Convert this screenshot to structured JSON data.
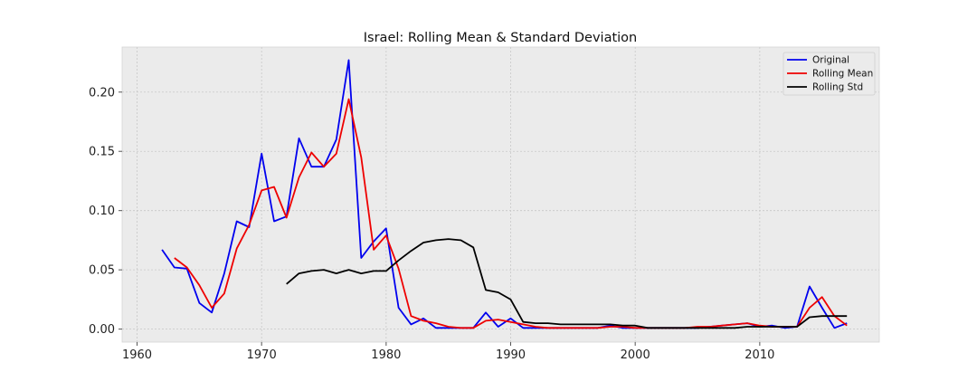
{
  "chart_data": {
    "type": "line",
    "title": "Israel: Rolling Mean & Standard Deviation",
    "xlabel": "",
    "ylabel": "",
    "xlim": [
      1958.8,
      2019.6
    ],
    "ylim": [
      -0.011,
      0.238
    ],
    "x_ticks": [
      1960,
      1970,
      1980,
      1990,
      2000,
      2010
    ],
    "x_tick_labels": [
      "1960",
      "1970",
      "1980",
      "1990",
      "2000",
      "2010"
    ],
    "y_ticks": [
      0.0,
      0.05,
      0.1,
      0.15,
      0.2
    ],
    "y_tick_labels": [
      "0.00",
      "0.05",
      "0.10",
      "0.15",
      "0.20"
    ],
    "grid": true,
    "legend_position": "top-right",
    "series": [
      {
        "name": "Original",
        "color": "#0000ee",
        "x": [
          1962,
          1963,
          1964,
          1965,
          1966,
          1967,
          1968,
          1969,
          1970,
          1971,
          1972,
          1973,
          1974,
          1975,
          1976,
          1977,
          1978,
          1979,
          1980,
          1981,
          1982,
          1983,
          1984,
          1985,
          1986,
          1987,
          1988,
          1989,
          1990,
          1991,
          1992,
          1993,
          1994,
          1995,
          1996,
          1997,
          1998,
          1999,
          2000,
          2001,
          2002,
          2003,
          2004,
          2005,
          2006,
          2007,
          2008,
          2009,
          2010,
          2011,
          2012,
          2013,
          2014,
          2015,
          2016,
          2017
        ],
        "values": [
          0.067,
          0.052,
          0.051,
          0.022,
          0.014,
          0.047,
          0.091,
          0.086,
          0.148,
          0.091,
          0.095,
          0.161,
          0.137,
          0.137,
          0.16,
          0.227,
          0.06,
          0.074,
          0.085,
          0.018,
          0.004,
          0.009,
          0.001,
          0.001,
          0.001,
          0.001,
          0.014,
          0.002,
          0.009,
          0.001,
          0.001,
          0.001,
          0.001,
          0.001,
          0.001,
          0.001,
          0.003,
          0.001,
          0.001,
          0.001,
          0.001,
          0.001,
          0.001,
          0.001,
          0.002,
          0.003,
          0.004,
          0.005,
          0.002,
          0.003,
          0.001,
          0.002,
          0.036,
          0.018,
          0.001,
          0.005
        ]
      },
      {
        "name": "Rolling Mean",
        "color": "#ee0000",
        "x": [
          1963,
          1964,
          1965,
          1966,
          1967,
          1968,
          1969,
          1970,
          1971,
          1972,
          1973,
          1974,
          1975,
          1976,
          1977,
          1978,
          1979,
          1980,
          1981,
          1982,
          1983,
          1984,
          1985,
          1986,
          1987,
          1988,
          1989,
          1990,
          1991,
          1992,
          1993,
          1994,
          1995,
          1996,
          1997,
          1998,
          1999,
          2000,
          2001,
          2002,
          2003,
          2004,
          2005,
          2006,
          2007,
          2008,
          2009,
          2010,
          2011,
          2012,
          2013,
          2014,
          2015,
          2016,
          2017
        ],
        "values": [
          0.06,
          0.052,
          0.037,
          0.018,
          0.03,
          0.068,
          0.088,
          0.117,
          0.12,
          0.094,
          0.128,
          0.149,
          0.137,
          0.148,
          0.194,
          0.145,
          0.067,
          0.079,
          0.051,
          0.011,
          0.007,
          0.005,
          0.002,
          0.001,
          0.001,
          0.007,
          0.008,
          0.006,
          0.004,
          0.002,
          0.001,
          0.001,
          0.001,
          0.001,
          0.001,
          0.002,
          0.002,
          0.001,
          0.001,
          0.001,
          0.001,
          0.001,
          0.002,
          0.002,
          0.003,
          0.004,
          0.005,
          0.003,
          0.002,
          0.002,
          0.002,
          0.018,
          0.027,
          0.011,
          0.003
        ]
      },
      {
        "name": "Rolling Std",
        "color": "#000000",
        "x": [
          1972,
          1973,
          1974,
          1975,
          1976,
          1977,
          1978,
          1979,
          1980,
          1981,
          1982,
          1983,
          1984,
          1985,
          1986,
          1987,
          1988,
          1989,
          1990,
          1991,
          1992,
          1993,
          1994,
          1995,
          1996,
          1997,
          1998,
          1999,
          2000,
          2001,
          2002,
          2003,
          2004,
          2005,
          2006,
          2007,
          2008,
          2009,
          2010,
          2011,
          2012,
          2013,
          2014,
          2015,
          2016,
          2017
        ],
        "values": [
          0.038,
          0.047,
          0.049,
          0.05,
          0.047,
          0.05,
          0.047,
          0.049,
          0.049,
          0.058,
          0.066,
          0.073,
          0.075,
          0.076,
          0.075,
          0.069,
          0.033,
          0.031,
          0.025,
          0.006,
          0.005,
          0.005,
          0.004,
          0.004,
          0.004,
          0.004,
          0.004,
          0.003,
          0.003,
          0.001,
          0.001,
          0.001,
          0.001,
          0.001,
          0.001,
          0.001,
          0.001,
          0.002,
          0.002,
          0.002,
          0.002,
          0.002,
          0.01,
          0.011,
          0.011,
          0.011
        ]
      }
    ]
  }
}
